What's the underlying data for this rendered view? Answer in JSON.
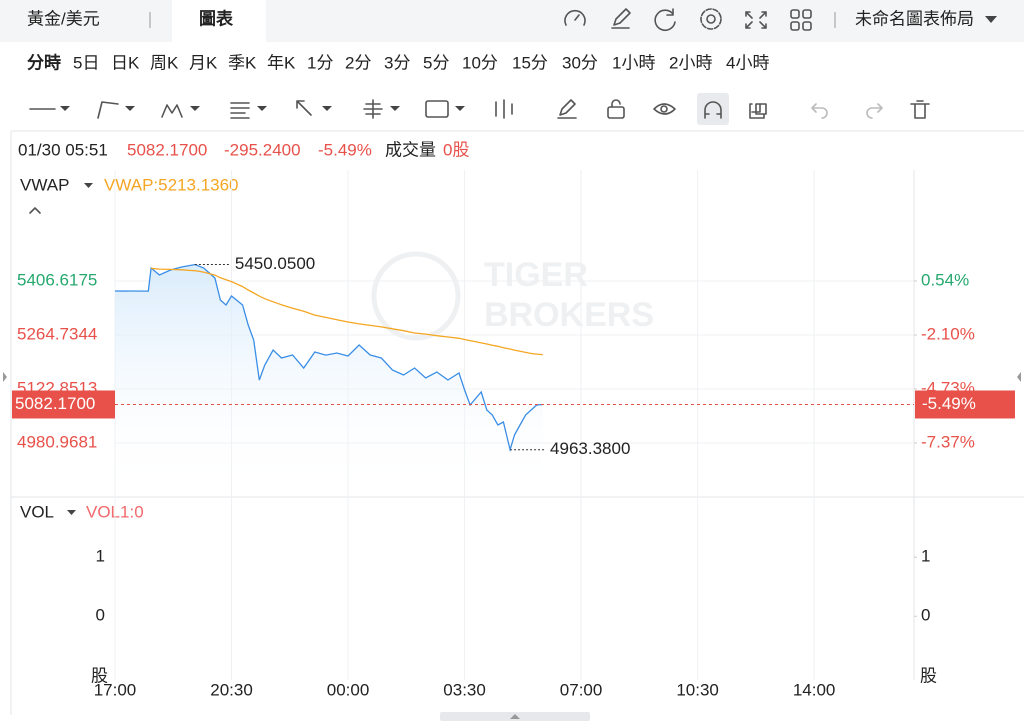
{
  "header": {
    "symbol": "黃金/美元",
    "tab": "圖表",
    "layout_menu": "未命名圖表佈局"
  },
  "periods": {
    "items": [
      "分時",
      "5日",
      "日K",
      "周K",
      "月K",
      "季K",
      "年K",
      "1分",
      "2分",
      "3分",
      "5分",
      "10分",
      "15分",
      "30分",
      "1小時",
      "2小時",
      "4小時"
    ],
    "active": 0
  },
  "quote": {
    "datetime": "01/30 05:51",
    "price": "5082.1700",
    "change": "-295.2400",
    "change_pct": "-5.49%",
    "volume_label": "成交量",
    "volume": "0股"
  },
  "watermark": {
    "lines": [
      "TIGER",
      "BROKERS"
    ]
  },
  "chart_data": [
    {
      "type": "line",
      "indicator": "VWAP",
      "indicator_value": "VWAP:5213.1360",
      "indicator_color": "#f5a623",
      "x": [
        "17:00",
        "18:00",
        "18:05",
        "18:20",
        "18:40",
        "19:00",
        "19:20",
        "19:24",
        "19:40",
        "20:00",
        "20:10",
        "20:20",
        "20:30",
        "20:50",
        "21:00",
        "21:10",
        "21:20",
        "21:30",
        "21:45",
        "22:00",
        "22:20",
        "22:40",
        "23:00",
        "23:20",
        "23:40",
        "00:00",
        "00:20",
        "00:40",
        "01:00",
        "01:20",
        "01:40",
        "02:00",
        "02:20",
        "02:40",
        "03:00",
        "03:20",
        "03:30",
        "03:40",
        "04:00",
        "04:10",
        "04:20",
        "04:30",
        "04:40",
        "04:52",
        "05:00",
        "05:10",
        "05:20",
        "05:30",
        "05:40",
        "05:51"
      ],
      "xlim": [
        "17:00",
        "17:00"
      ],
      "xticks": [
        "17:00",
        "20:30",
        "00:00",
        "03:30",
        "07:00",
        "10:30",
        "14:00"
      ],
      "series": [
        {
          "color": "#3a8ee6",
          "values": [
            5380.4,
            5380,
            5440.8,
            5422.4,
            5435.5,
            5443.4,
            5448.7,
            5450.05,
            5440.8,
            5414.5,
            5356.7,
            5343.6,
            5367.2,
            5343.6,
            5291,
            5251.6,
            5146.5,
            5186,
            5225.3,
            5204.3,
            5212.2,
            5178,
            5220,
            5212,
            5217.4,
            5209.6,
            5238.5,
            5212.2,
            5204.3,
            5172.8,
            5159.6,
            5178,
            5151.7,
            5167.5,
            5146.5,
            5164.9,
            5120.2,
            5080.8,
            5114.9,
            5067.6,
            5054.5,
            5028.3,
            5036.1,
            4963.38,
            5001.9,
            5028.3,
            5054.5,
            5067.6,
            5080.8,
            5082.17
          ]
        },
        {
          "name": "VWAP",
          "color": "#f5a623",
          "values": [
            null,
            null,
            5440,
            5438,
            5437,
            5436,
            5434,
            5434,
            5430,
            5422,
            5415,
            5410,
            5405,
            5392,
            5383,
            5375,
            5367,
            5360,
            5352,
            5344,
            5335,
            5327,
            5317,
            5311,
            5305,
            5299,
            5294,
            5290,
            5286,
            5281,
            5276,
            5270,
            5267,
            5263,
            5259.5,
            5256,
            5253,
            5250,
            5244,
            5241,
            5238,
            5235,
            5231,
            5228,
            5225,
            5222,
            5219,
            5216,
            5214.5,
            5213.136
          ]
        }
      ],
      "ylim": [
        4839.08,
        5698.27
      ],
      "yticks": [
        4980.9681,
        5122.8513,
        5264.7344,
        5406.6175
      ],
      "y2lim": [
        -10.01,
        5.96
      ],
      "y2ticks": [
        {
          "value": -7.37,
          "label": "-7.37%"
        },
        {
          "value": -4.73,
          "label": "-4.73%"
        },
        {
          "value": -2.1,
          "label": "-2.10%"
        },
        {
          "value": 0.54,
          "label": "0.54%"
        }
      ],
      "annotations": [
        {
          "x": "19:24",
          "value": 5450.05,
          "label": "5450.0500"
        },
        {
          "x": "04:52",
          "value": 4963.38,
          "label": "4963.3800"
        }
      ],
      "last": {
        "value": 5082.17,
        "label": "5082.1700",
        "change_label": "-5.49%"
      },
      "up_color": "#26a86e",
      "down_color": "#e8514a",
      "grid": true
    },
    {
      "type": "bar",
      "indicator": "VOL",
      "indicator_value": "VOL1:0",
      "indicator_color": "#f0686b",
      "ylim": [
        -1.08,
        2.02
      ],
      "yticks": [
        0,
        1
      ],
      "unit": "股"
    }
  ]
}
